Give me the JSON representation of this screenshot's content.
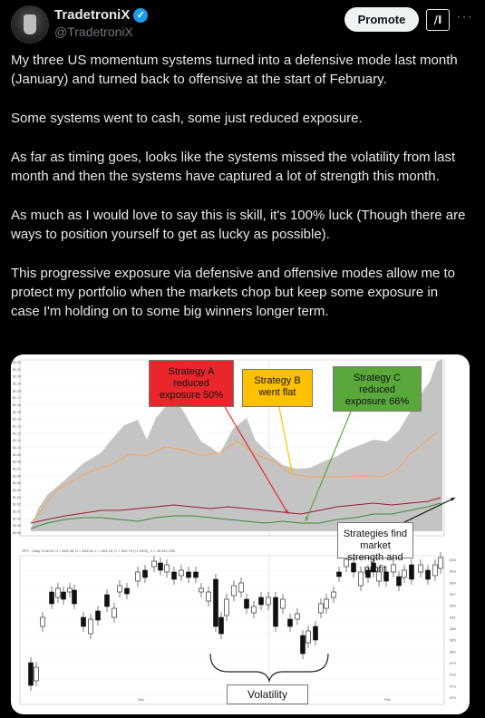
{
  "author": {
    "name": "TradetroniX",
    "handle": "@TradetroniX",
    "verified_icon": "verified-badge-icon"
  },
  "actions": {
    "promote_label": "Promote",
    "grok_icon": "grok-icon",
    "more_icon": "more-icon"
  },
  "tweet": {
    "paragraphs": [
      "My three US momentum systems turned into a defensive mode last month (January) and turned back to offensive at the start of February.",
      "Some systems went to cash, some just reduced exposure.",
      "As far as timing goes, looks like the systems missed the volatility from last month and then the systems have captured a lot of strength this month.",
      "As much as I would love to say this is skill, it's 100% luck (Though there are ways to position yourself to get as lucky as possible).",
      "This progressive exposure via defensive and offensive modes allow me to protect my portfolio when the markets chop but keep some exposure in case I'm holding on to some big winners longer term."
    ]
  },
  "chart": {
    "annotations": {
      "a": "Strategy A reduced exposure 50%",
      "b": "Strategy B went flat",
      "c": "Strategy C reduced exposure 66%",
      "find": "Strategies find market strength and profit",
      "volatility": "Volatility"
    },
    "colors": {
      "a": "#e8262b",
      "b": "#ffc000",
      "c": "#5aa83b",
      "area": "#c4c4c4",
      "orange_line": "#f4a460",
      "red_line": "#9b1b30",
      "green_line": "#3c8c3c"
    },
    "spy_info": "SPY - Daily 2/13/25:  O = 604.48,  H = 609.94,  L = 603.20,  C = 609.73 (+1.05%),  V = 40.621,296",
    "top_y_ticks": [
      "$1.22",
      "$1.21",
      "$1.20",
      "$1.19",
      "$1.18",
      "$1.17",
      "$1.16",
      "$1.15",
      "$1.14",
      "$1.13",
      "$1.12",
      "$1.11",
      "$1.10",
      "$1.09",
      "$1.08",
      "$1.07",
      "$1.06",
      "$1.05",
      "$1.04",
      "$1.03",
      "$1.02",
      "$1.01",
      "$1.00",
      "$0.99",
      "$0.98"
    ],
    "bottom_y_ticks": [
      "606",
      "603",
      "600",
      "597",
      "594",
      "591",
      "588",
      "585",
      "582",
      "579",
      "576",
      "573",
      "570"
    ],
    "x_labels": [
      "Dec",
      "Feb"
    ]
  }
}
